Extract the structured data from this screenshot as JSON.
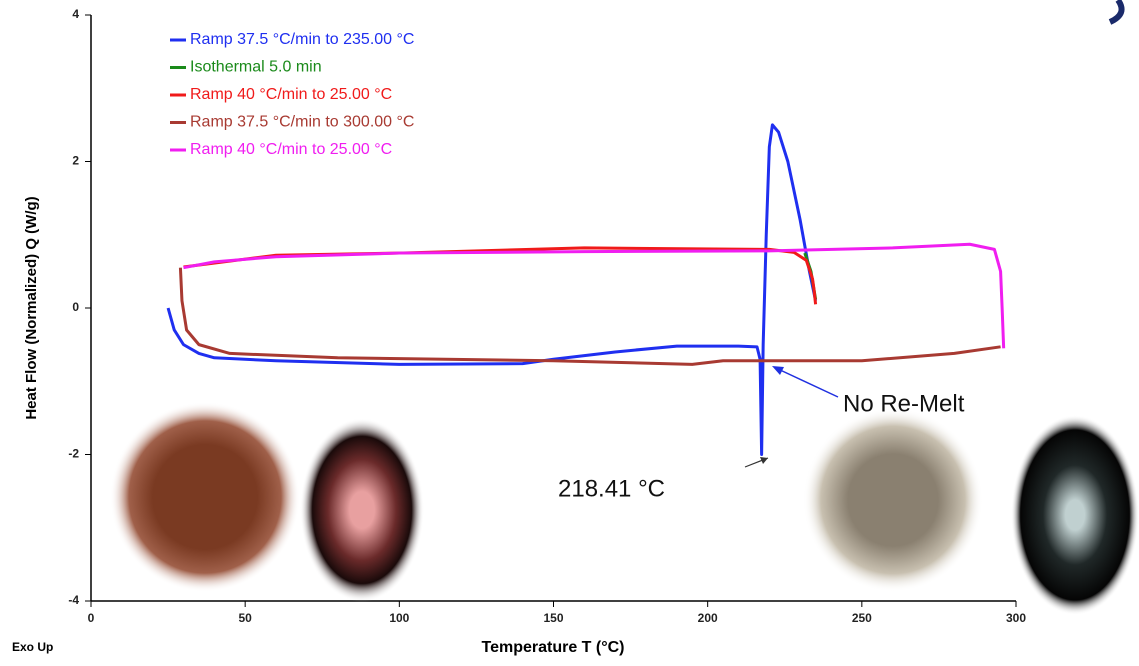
{
  "chart_data": {
    "type": "line",
    "xlabel": "Temperature T (°C)",
    "ylabel": "Heat Flow (Normalized) Q (W/g)",
    "corner_note": "Exo Up",
    "xlim": [
      0,
      300
    ],
    "xticks": [
      0,
      50,
      100,
      150,
      200,
      250,
      300
    ],
    "ylim": [
      -4,
      4
    ],
    "yticks": [
      -4,
      -2,
      0,
      2,
      4
    ],
    "legend": "upper left",
    "annotations": [
      "218.41 °C",
      "No Re-Melt"
    ],
    "series": [
      {
        "name": "Ramp 37.5 °C/min to 235.00 °C",
        "color": "#1f2ff0",
        "x": [
          25,
          27,
          30,
          35,
          40,
          60,
          100,
          140,
          150,
          170,
          190,
          210,
          216,
          217,
          217.5,
          218,
          219,
          220,
          221,
          223,
          226,
          230,
          233,
          235
        ],
        "values": [
          0.0,
          -0.3,
          -0.5,
          -0.62,
          -0.68,
          -0.72,
          -0.77,
          -0.76,
          -0.7,
          -0.6,
          -0.52,
          -0.52,
          -0.53,
          -0.7,
          -2.0,
          -0.5,
          1.0,
          2.2,
          2.5,
          2.4,
          2.0,
          1.2,
          0.5,
          0.1
        ]
      },
      {
        "name": "Isothermal 5.0 min",
        "color": "#1a8a1a",
        "x": [
          231.5,
          233.5,
          235
        ],
        "values": [
          0.75,
          0.5,
          0.12
        ]
      },
      {
        "name": "Ramp 40 °C/min to 25.00 °C",
        "color": "#f01a1a",
        "x": [
          235,
          234.5,
          234,
          232,
          228,
          220,
          160,
          100,
          60,
          30
        ],
        "values": [
          0.05,
          0.25,
          0.4,
          0.65,
          0.76,
          0.8,
          0.82,
          0.75,
          0.72,
          0.56
        ]
      },
      {
        "name": "Ramp 37.5 °C/min to 300.00 °C",
        "color": "#a83a32",
        "x": [
          29,
          29.5,
          31,
          35,
          45,
          80,
          150,
          195,
          205,
          250,
          280,
          295
        ],
        "values": [
          0.55,
          0.1,
          -0.3,
          -0.5,
          -0.62,
          -0.68,
          -0.72,
          -0.77,
          -0.72,
          -0.72,
          -0.62,
          -0.53
        ]
      },
      {
        "name": "Ramp 40 °C/min to 25.00 °C",
        "color": "#f01ef0",
        "x": [
          296,
          295.5,
          295,
          293,
          285,
          260,
          220,
          160,
          100,
          60,
          40,
          30
        ],
        "values": [
          -0.55,
          0.0,
          0.5,
          0.8,
          0.87,
          0.82,
          0.78,
          0.77,
          0.75,
          0.7,
          0.63,
          0.55
        ]
      }
    ]
  }
}
